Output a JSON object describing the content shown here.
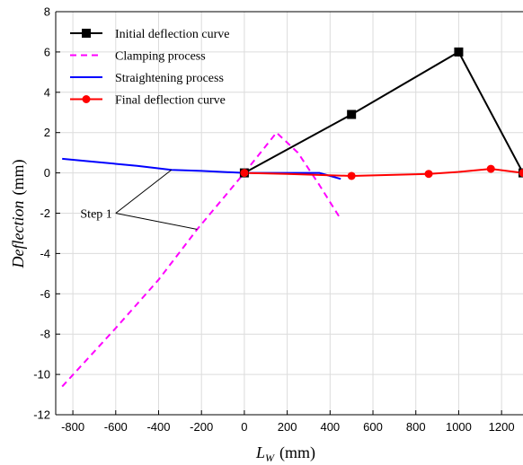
{
  "chart_data": {
    "type": "line",
    "xlabel_main": "L",
    "xlabel_sub": "W",
    "xlabel_unit": "(mm)",
    "ylabel_main": "Deflection",
    "ylabel_unit": "(mm)",
    "xlim": [
      -880,
      1300
    ],
    "ylim": [
      -12,
      8
    ],
    "xticks": [
      -800,
      -600,
      -400,
      -200,
      0,
      200,
      400,
      600,
      800,
      1000,
      1200
    ],
    "yticks": [
      -12,
      -10,
      -8,
      -6,
      -4,
      -2,
      0,
      2,
      4,
      6,
      8
    ],
    "grid": true,
    "legend_position": "top-left",
    "series": [
      {
        "name": "Initial deflection curve",
        "color": "#000000",
        "style": "solid",
        "marker": "square",
        "x": [
          0,
          500,
          1000,
          1300
        ],
        "y": [
          0,
          2.9,
          6.0,
          0
        ]
      },
      {
        "name": "Clamping process",
        "color": "#ff00ff",
        "style": "dashed",
        "marker": "none",
        "x": [
          -850,
          -600,
          -400,
          -220,
          0,
          150,
          250,
          350,
          450
        ],
        "y": [
          -10.6,
          -7.7,
          -5.3,
          -2.8,
          0,
          2.0,
          1.0,
          -0.6,
          -2.3
        ]
      },
      {
        "name": "Straightening process",
        "color": "#0000ff",
        "style": "solid",
        "marker": "none",
        "x": [
          -850,
          -700,
          -500,
          -340,
          -200,
          0,
          200,
          350,
          450
        ],
        "y": [
          0.7,
          0.55,
          0.35,
          0.15,
          0.1,
          0,
          0,
          0,
          -0.3
        ]
      },
      {
        "name": "Final deflection curve",
        "color": "#ff0000",
        "style": "solid",
        "marker": "circle",
        "x": [
          0,
          200,
          500,
          700,
          860,
          1000,
          1150,
          1300
        ],
        "y": [
          0,
          -0.05,
          -0.15,
          -0.1,
          -0.05,
          0.05,
          0.2,
          0
        ],
        "marker_x": [
          0,
          500,
          860,
          1150,
          1300
        ],
        "marker_y": [
          0,
          -0.15,
          -0.05,
          0.2,
          0
        ]
      }
    ],
    "annotation": {
      "text": "Step 1",
      "anchor": [
        -600,
        -2
      ],
      "targets": [
        [
          -340,
          0.15
        ],
        [
          -220,
          -2.8
        ]
      ]
    }
  }
}
